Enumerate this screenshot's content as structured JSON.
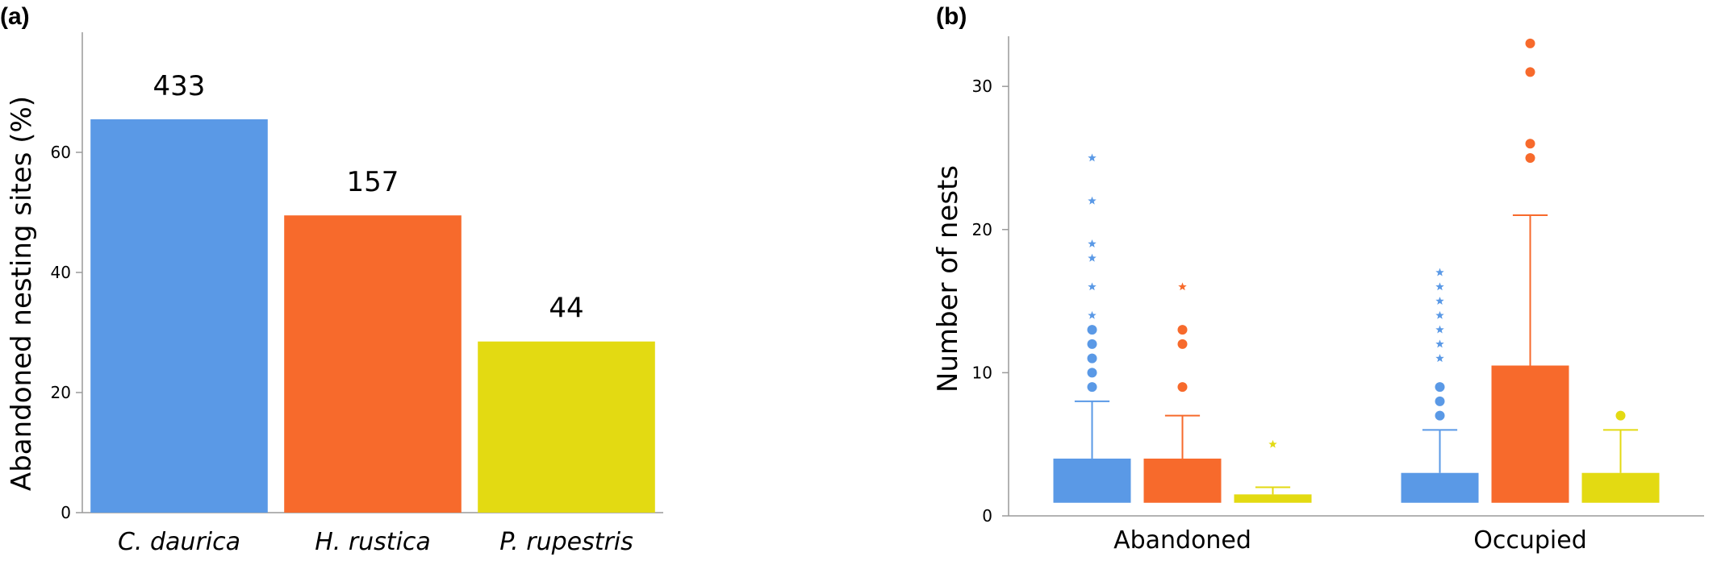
{
  "colors": {
    "C. daurica": "#5a99e6",
    "H. rustica": "#f76a2c",
    "P. rupestris": "#e3da12",
    "axis": "#9a9a9a"
  },
  "chart_data": [
    {
      "panel_label": "(a)",
      "type": "bar",
      "ylabel": "Abandoned nesting sites (%)",
      "xlabel": "",
      "ylim": [
        0,
        80
      ],
      "yticks": [
        0,
        20,
        40,
        60
      ],
      "grid": false,
      "categories": [
        "C. daurica",
        "H. rustica",
        "P. rupestris"
      ],
      "values": [
        65.5,
        49.5,
        28.5
      ],
      "data_labels": [
        "433",
        "157",
        "44"
      ]
    },
    {
      "panel_label": "(b)",
      "type": "box",
      "ylabel": "Number of nests",
      "xlabel": "",
      "ylim": [
        0,
        33.5
      ],
      "yticks": [
        0,
        10,
        20,
        30
      ],
      "grid": false,
      "categories": [
        "Abandoned",
        "Occupied"
      ],
      "series": [
        {
          "key": "C. daurica",
          "boxes": [
            {
              "category": "Abandoned",
              "whisker_low": 1,
              "q1": 1,
              "median": 1,
              "q3": 4,
              "whisker_high": 8,
              "outliers": [
                9,
                10,
                11,
                12,
                13
              ],
              "extremes": [
                14,
                16,
                18,
                19,
                22,
                25
              ]
            },
            {
              "category": "Occupied",
              "whisker_low": 1,
              "q1": 1,
              "median": 1,
              "q3": 3,
              "whisker_high": 6,
              "outliers": [
                7,
                8,
                9
              ],
              "extremes": [
                11,
                12,
                13,
                14,
                15,
                16,
                17
              ]
            }
          ]
        },
        {
          "key": "H. rustica",
          "boxes": [
            {
              "category": "Abandoned",
              "whisker_low": 1,
              "q1": 1,
              "median": 1,
              "q3": 4,
              "whisker_high": 7,
              "outliers": [
                9,
                12,
                13
              ],
              "extremes": [
                16
              ]
            },
            {
              "category": "Occupied",
              "whisker_low": 1,
              "q1": 1,
              "median": 1,
              "q3": 10.5,
              "whisker_high": 21,
              "outliers": [
                25,
                26,
                31,
                33
              ],
              "extremes": []
            }
          ]
        },
        {
          "key": "P. rupestris",
          "boxes": [
            {
              "category": "Abandoned",
              "whisker_low": 1,
              "q1": 1,
              "median": 1,
              "q3": 1.5,
              "whisker_high": 2,
              "outliers": [],
              "extremes": [
                5
              ]
            },
            {
              "category": "Occupied",
              "whisker_low": 1,
              "q1": 1,
              "median": 1,
              "q3": 3,
              "whisker_high": 6,
              "outliers": [
                7
              ],
              "extremes": []
            }
          ]
        }
      ]
    }
  ]
}
